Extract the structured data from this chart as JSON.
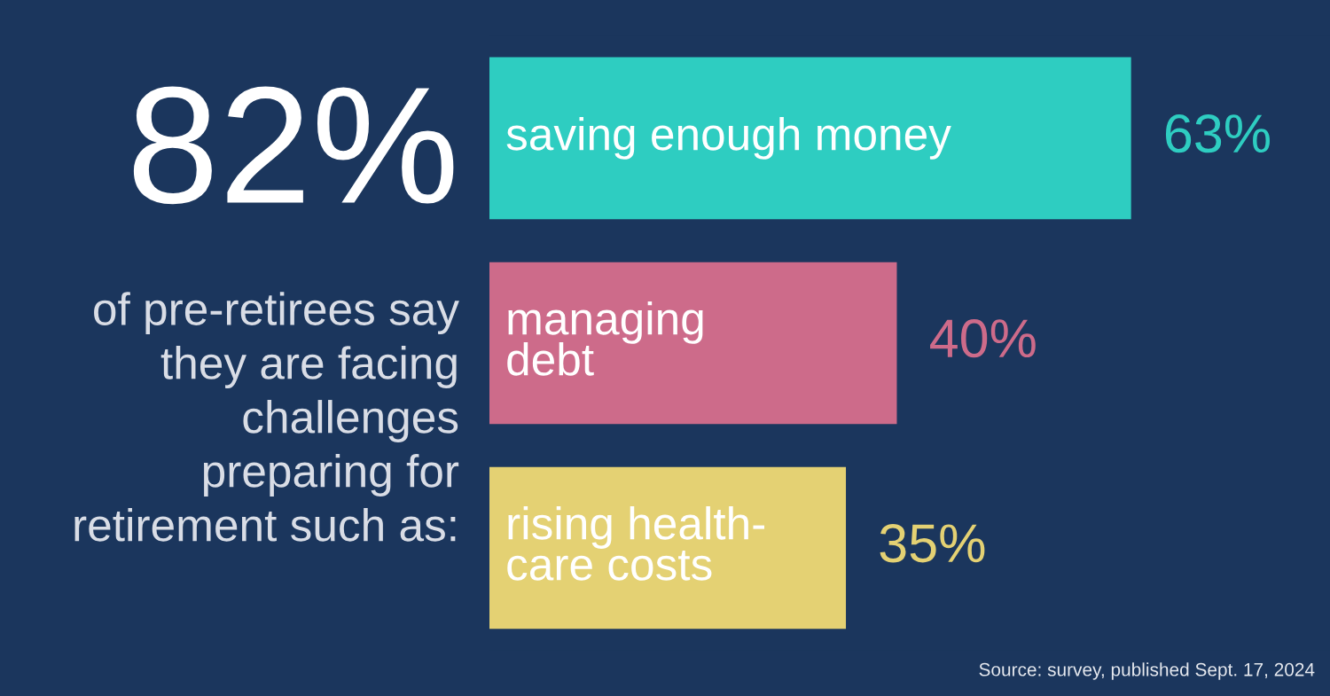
{
  "chart_data": {
    "type": "bar",
    "orientation": "horizontal",
    "categories": [
      "saving enough money",
      "managing\ndebt",
      "rising health-\ncare costs"
    ],
    "values": [
      63,
      40,
      35
    ],
    "colors": [
      "#2ecdc1",
      "#cd6b8a",
      "#e4d173"
    ],
    "value_labels": [
      "63%",
      "40%",
      "35%"
    ],
    "annotations": [
      "82%",
      "of pre-retirees say\nthey are facing\nchallenges\npreparing for\nretirement such as:",
      "Source: survey, published Sept. 17, 2024"
    ],
    "grid": false,
    "legend": false,
    "tick_labels": false
  }
}
